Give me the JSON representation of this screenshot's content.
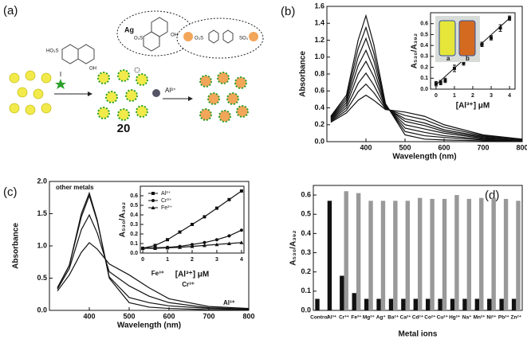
{
  "diagram": {
    "label": "(a)",
    "texts": [
      "HO₃S",
      "OH",
      "Ag",
      "O₃S",
      "OH",
      "Al³⁺",
      "20",
      "O₃S",
      "SO₃"
    ]
  },
  "chart_data": [
    {
      "type": "line",
      "label": "(b)",
      "xlabel": "Wavelength (nm)",
      "ylabel": "Absorbance",
      "xlim": [
        300,
        800
      ],
      "xticks": [
        400,
        500,
        600,
        700,
        800
      ],
      "ylim": [
        0,
        1.6
      ],
      "yticks": [
        {
          "value": 0,
          "label": "0.0"
        },
        0.2,
        0.4,
        0.6,
        0.8,
        {
          "value": 1,
          "label": "1.0"
        },
        1.2,
        1.4,
        1.6
      ],
      "x": [
        310,
        350,
        380,
        400,
        420,
        450,
        500,
        550,
        600,
        700,
        800
      ],
      "series": [
        {
          "color": "#111",
          "values": [
            0.3,
            0.55,
            1.2,
            1.49,
            1.15,
            0.45,
            0.08,
            0.03,
            0.02,
            0.01,
            0.01
          ]
        },
        {
          "color": "#111",
          "values": [
            0.29,
            0.52,
            1.1,
            1.35,
            1.05,
            0.44,
            0.12,
            0.07,
            0.05,
            0.02,
            0.01
          ]
        },
        {
          "color": "#111",
          "values": [
            0.28,
            0.49,
            1.0,
            1.22,
            0.96,
            0.43,
            0.16,
            0.11,
            0.07,
            0.03,
            0.02
          ]
        },
        {
          "color": "#111",
          "values": [
            0.27,
            0.46,
            0.9,
            1.08,
            0.86,
            0.42,
            0.2,
            0.15,
            0.1,
            0.04,
            0.02
          ]
        },
        {
          "color": "#111",
          "values": [
            0.26,
            0.43,
            0.8,
            0.95,
            0.77,
            0.41,
            0.24,
            0.19,
            0.12,
            0.05,
            0.02
          ]
        },
        {
          "color": "#111",
          "values": [
            0.25,
            0.4,
            0.69,
            0.81,
            0.67,
            0.4,
            0.27,
            0.22,
            0.14,
            0.06,
            0.03
          ]
        },
        {
          "color": "#111",
          "values": [
            0.24,
            0.37,
            0.59,
            0.68,
            0.58,
            0.39,
            0.31,
            0.26,
            0.17,
            0.07,
            0.03
          ]
        },
        {
          "color": "#111",
          "values": [
            0.23,
            0.34,
            0.49,
            0.55,
            0.49,
            0.38,
            0.35,
            0.3,
            0.2,
            0.08,
            0.03
          ]
        }
      ]
    },
    {
      "type": "scatter",
      "xlabel": "[Al³⁺] μM",
      "ylabel": "A₅₃₀/A₃₉₂",
      "annotations": [
        "a",
        "b"
      ],
      "xlim": [
        -0.3,
        4.3
      ],
      "xticks": [
        0,
        1,
        2,
        3,
        4
      ],
      "ylim": [
        0,
        0.7
      ],
      "yticks": [
        {
          "value": 0,
          "label": "0.0"
        },
        0.1,
        0.2,
        0.3,
        0.4,
        0.5,
        0.6
      ],
      "x": [
        0,
        0.25,
        0.5,
        1,
        1.5,
        2,
        2.5,
        3,
        3.5,
        4
      ],
      "values": [
        0.05,
        0.06,
        0.08,
        0.19,
        0.24,
        0.33,
        0.41,
        0.47,
        0.56,
        0.65
      ],
      "errors": [
        0.02,
        0.02,
        0.02,
        0.03,
        0.02,
        0.02,
        0.02,
        0.02,
        0.03,
        0.02
      ],
      "color": "#111",
      "fit_line": {
        "x": [
          0,
          4
        ],
        "y": [
          0.04,
          0.65
        ]
      }
    },
    {
      "type": "line",
      "label": "(c)",
      "xlabel": "Wavelength (nm)",
      "ylabel": "Absorbance",
      "xlim": [
        300,
        800
      ],
      "xticks": [
        400,
        500,
        600,
        700,
        800
      ],
      "ylim": [
        0,
        2.0
      ],
      "yticks": [
        {
          "value": 0,
          "label": "0.0"
        },
        0.5,
        {
          "value": 1,
          "label": "1.0"
        },
        1.5,
        {
          "value": 2,
          "label": "2.0"
        }
      ],
      "x": [
        320,
        350,
        380,
        400,
        420,
        450,
        500,
        550,
        600,
        700,
        800
      ],
      "series": [
        {
          "name": "other metals",
          "color": "#111",
          "values": [
            0.35,
            0.7,
            1.5,
            1.82,
            1.4,
            0.5,
            0.12,
            0.05,
            0.03,
            0.01,
            0.01
          ]
        },
        {
          "name": "Fe³⁺",
          "color": "#111",
          "values": [
            0.35,
            0.7,
            1.45,
            1.78,
            1.38,
            0.52,
            0.2,
            0.12,
            0.07,
            0.03,
            0.02
          ]
        },
        {
          "name": "Cr³⁺",
          "color": "#111",
          "values": [
            0.33,
            0.65,
            1.25,
            1.48,
            1.2,
            0.6,
            0.38,
            0.22,
            0.12,
            0.04,
            0.02
          ]
        },
        {
          "name": "Al³⁺",
          "color": "#111",
          "values": [
            0.3,
            0.55,
            0.9,
            1.05,
            0.95,
            0.72,
            0.55,
            0.35,
            0.18,
            0.06,
            0.03
          ]
        }
      ]
    },
    {
      "type": "line",
      "xlabel": "[Al³⁺] μM",
      "ylabel": "A₅₃₀/A₃₉₂",
      "legend": "upper left",
      "xlim": [
        -0.1,
        4.1
      ],
      "xticks": [
        0,
        1,
        2,
        3,
        4
      ],
      "ylim": [
        0,
        0.7
      ],
      "yticks": [
        {
          "value": 0,
          "label": "0.0"
        },
        0.1,
        0.2,
        0.3,
        0.4,
        0.5,
        0.6
      ],
      "x": [
        0,
        0.5,
        1,
        1.5,
        2,
        2.5,
        3,
        3.5,
        4
      ],
      "series": [
        {
          "name": "Al³⁺",
          "color": "#111",
          "marker": "square",
          "values": [
            0.05,
            0.08,
            0.14,
            0.22,
            0.3,
            0.38,
            0.47,
            0.56,
            0.65
          ]
        },
        {
          "name": "Cr³⁺",
          "color": "#111",
          "marker": "circle",
          "values": [
            0.05,
            0.055,
            0.06,
            0.07,
            0.09,
            0.11,
            0.14,
            0.18,
            0.24
          ]
        },
        {
          "name": "Fe³⁺",
          "color": "#111",
          "marker": "triangle",
          "values": [
            0.05,
            0.05,
            0.055,
            0.06,
            0.07,
            0.08,
            0.09,
            0.1,
            0.11
          ]
        }
      ]
    },
    {
      "type": "bar",
      "label": "(d)",
      "xlabel": "Metal ions",
      "ylabel": "A₅₃₀/A₃₉₂",
      "categories": [
        "Control",
        "Al³⁺",
        "Cr³⁺",
        "Fe³⁺",
        "Mg²⁺",
        "Ag⁺",
        "Ba²⁺",
        "Ca²⁺",
        "Cd²⁺",
        "Co²⁺",
        "Cu²⁺",
        "Hg²⁺",
        "Na⁺",
        "Mn²⁺",
        "Ni²⁺",
        "Pb²⁺",
        "Zn²⁺"
      ],
      "ylim": [
        0,
        0.65
      ],
      "yticks": [
        {
          "value": 0,
          "label": "0.0"
        },
        0.1,
        0.2,
        0.3,
        0.4,
        0.5,
        0.6
      ],
      "series": [
        {
          "color": "#111",
          "values": [
            0.06,
            0.57,
            0.18,
            0.09,
            0.06,
            0.06,
            0.06,
            0.06,
            0.06,
            0.06,
            0.06,
            0.06,
            0.06,
            0.06,
            0.06,
            0.06,
            0.06
          ]
        },
        {
          "color": "#999",
          "values": [
            null,
            null,
            0.62,
            0.61,
            0.57,
            0.57,
            0.57,
            0.57,
            0.585,
            0.58,
            0.58,
            0.6,
            0.58,
            0.585,
            0.585,
            0.58,
            0.57
          ]
        }
      ]
    }
  ]
}
